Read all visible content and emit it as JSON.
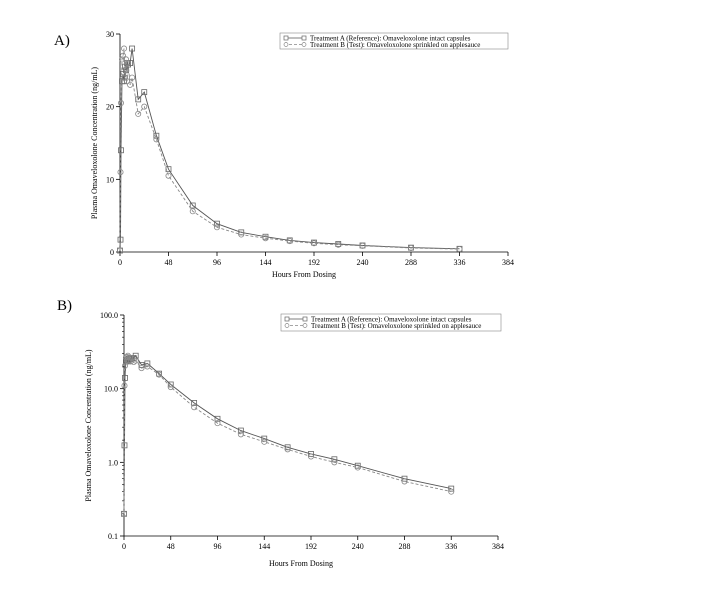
{
  "panels": [
    {
      "letter": "A)",
      "chart_data": {
        "type": "line",
        "yscale": "linear",
        "xlabel": "Hours From Dosing",
        "ylabel": "Plasma Omaveloxolone Concentration (ng/mL)",
        "xlim": [
          0,
          384
        ],
        "ylim": [
          0,
          30
        ],
        "xticks": [
          0,
          48,
          96,
          144,
          192,
          240,
          288,
          336,
          384
        ],
        "yticks": [
          0,
          10,
          20,
          30
        ],
        "ytick_labels": [
          "0",
          "10",
          "20",
          "30"
        ],
        "legend_position": "top-right",
        "series": [
          {
            "name": "Treatment A (Reference): Omaveloxolone intact capsules",
            "marker": "square",
            "line": "solid",
            "x": [
              0,
              0.5,
              1,
              2,
              3,
              4,
              5,
              6,
              7,
              8,
              10,
              12,
              18,
              24,
              36,
              48,
              72,
              96,
              120,
              144,
              168,
              192,
              216,
              240,
              288,
              336
            ],
            "y": [
              0.2,
              1.7,
              14,
              23.5,
              24.5,
              23.5,
              25.5,
              25,
              26,
              25.8,
              26,
              28,
              21,
              22,
              16,
              11.4,
              6.4,
              3.9,
              2.7,
              2.1,
              1.6,
              1.3,
              1.1,
              0.9,
              0.6,
              0.44
            ]
          },
          {
            "name": "Treatment B (Test): Omaveloxolone sprinkled on applesauce",
            "marker": "circle",
            "line": "dashed",
            "x": [
              0,
              0.5,
              1,
              2,
              3,
              4,
              5,
              6,
              7,
              8,
              10,
              12,
              18,
              24,
              36,
              48,
              72,
              96,
              120,
              144,
              168,
              192,
              216,
              240,
              288,
              336
            ],
            "y": [
              0.2,
              11,
              20.5,
              26.5,
              27,
              28,
              24,
              26.5,
              23.5,
              26,
              23,
              24,
              19,
              20,
              15.5,
              10.5,
              5.6,
              3.4,
              2.4,
              1.9,
              1.5,
              1.2,
              1.0,
              0.85,
              0.55,
              0.4
            ]
          }
        ]
      }
    },
    {
      "letter": "B)",
      "chart_data": {
        "type": "line",
        "yscale": "log",
        "xlabel": "Hours From Dosing",
        "ylabel": "Plasma Omaveloxolone Concentration (ng/mL)",
        "xlim": [
          0,
          384
        ],
        "ylim": [
          0.1,
          100
        ],
        "xticks": [
          0,
          48,
          96,
          144,
          192,
          240,
          288,
          336,
          384
        ],
        "yticks": [
          0.1,
          1,
          10,
          100
        ],
        "ytick_labels": [
          "0.1",
          "1.0",
          "10.0",
          "100.0"
        ],
        "legend_position": "top-right",
        "series": [
          {
            "name": "Treatment A (Reference): Omaveloxolone intact capsules",
            "marker": "square",
            "line": "solid",
            "x": [
              0,
              0.5,
              1,
              2,
              3,
              4,
              5,
              6,
              7,
              8,
              10,
              12,
              18,
              24,
              36,
              48,
              72,
              96,
              120,
              144,
              168,
              192,
              216,
              240,
              288,
              336
            ],
            "y": [
              0.2,
              1.7,
              14,
              23.5,
              24.5,
              23.5,
              25.5,
              25,
              26,
              25.8,
              26,
              28,
              21,
              22,
              16,
              11.4,
              6.4,
              3.9,
              2.7,
              2.1,
              1.6,
              1.3,
              1.1,
              0.9,
              0.6,
              0.44
            ]
          },
          {
            "name": "Treatment B (Test): Omaveloxolone sprinkled on applesauce",
            "marker": "circle",
            "line": "dashed",
            "x": [
              0,
              0.5,
              1,
              2,
              3,
              4,
              5,
              6,
              7,
              8,
              10,
              12,
              18,
              24,
              36,
              48,
              72,
              96,
              120,
              144,
              168,
              192,
              216,
              240,
              288,
              336
            ],
            "y": [
              0.2,
              11,
              20.5,
              26.5,
              27,
              28,
              24,
              26.5,
              23.5,
              26,
              23,
              24,
              19,
              20,
              15.5,
              10.5,
              5.6,
              3.4,
              2.4,
              1.9,
              1.5,
              1.2,
              1.0,
              0.85,
              0.55,
              0.4
            ]
          }
        ]
      }
    }
  ]
}
